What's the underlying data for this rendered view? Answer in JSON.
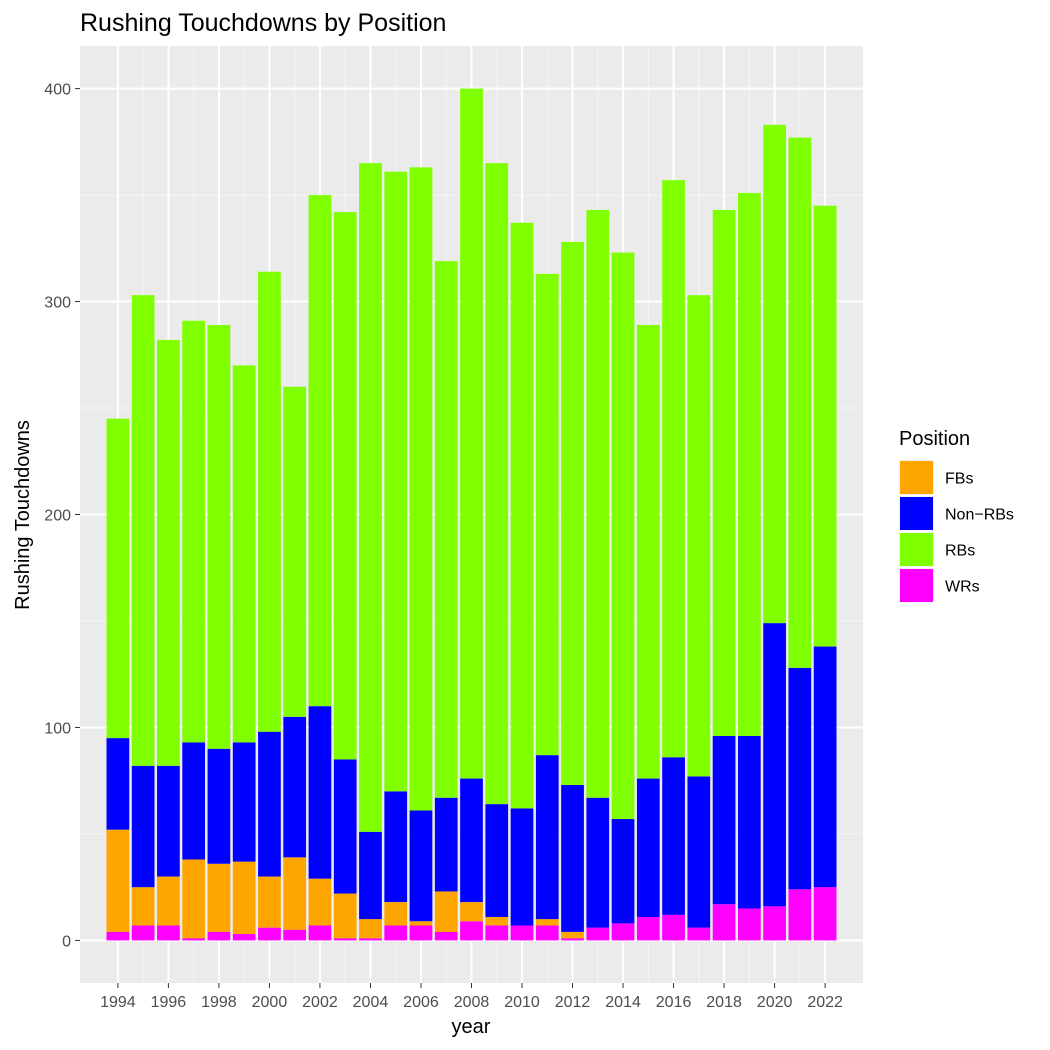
{
  "chart_data": {
    "type": "bar",
    "stacked": true,
    "title": "Rushing Touchdowns by Position",
    "xlabel": "year",
    "ylabel": "Rushing Touchdowns",
    "ylim": [
      -20,
      420
    ],
    "yticks": [
      0,
      100,
      200,
      300,
      400
    ],
    "xlim": [
      1992.5,
      2023.5
    ],
    "xticks": [
      1994,
      1996,
      1998,
      2000,
      2002,
      2004,
      2006,
      2008,
      2010,
      2012,
      2014,
      2016,
      2018,
      2020,
      2022
    ],
    "grid": true,
    "legend_position": "right",
    "legend_title": "Position",
    "legend": [
      "FBs",
      "Non−RBs",
      "RBs",
      "WRs"
    ],
    "colors": {
      "FBs": "#ffa500",
      "Non−RBs": "#0000ff",
      "RBs": "#7fff00",
      "WRs": "#ff00ff"
    },
    "categories": [
      1994,
      1995,
      1996,
      1997,
      1998,
      1999,
      2000,
      2001,
      2002,
      2003,
      2004,
      2005,
      2006,
      2007,
      2008,
      2009,
      2010,
      2011,
      2012,
      2013,
      2014,
      2015,
      2016,
      2017,
      2018,
      2019,
      2020,
      2021,
      2022
    ],
    "stack_order_top_to_bottom": [
      "RBs",
      "Non−RBs",
      "FBs",
      "WRs"
    ],
    "series": [
      {
        "name": "WRs",
        "values": [
          4,
          7,
          7,
          1,
          4,
          3,
          6,
          5,
          7,
          1,
          1,
          7,
          7,
          4,
          9,
          7,
          7,
          7,
          1,
          6,
          8,
          11,
          12,
          6,
          17,
          15,
          16,
          24,
          25
        ]
      },
      {
        "name": "FBs",
        "values": [
          48,
          18,
          23,
          37,
          32,
          34,
          24,
          34,
          22,
          21,
          9,
          11,
          2,
          19,
          9,
          4,
          0,
          3,
          3,
          0,
          0,
          0,
          0,
          0,
          0,
          0,
          0,
          0,
          0
        ]
      },
      {
        "name": "Non−RBs",
        "values": [
          43,
          57,
          52,
          55,
          54,
          56,
          68,
          66,
          81,
          63,
          41,
          52,
          52,
          44,
          58,
          53,
          55,
          77,
          69,
          61,
          49,
          65,
          74,
          71,
          79,
          81,
          133,
          104,
          113
        ]
      },
      {
        "name": "RBs",
        "values": [
          150,
          221,
          200,
          198,
          199,
          177,
          216,
          155,
          240,
          257,
          314,
          291,
          302,
          252,
          324,
          301,
          275,
          226,
          255,
          276,
          266,
          213,
          271,
          226,
          247,
          255,
          234,
          249,
          207
        ]
      }
    ]
  }
}
